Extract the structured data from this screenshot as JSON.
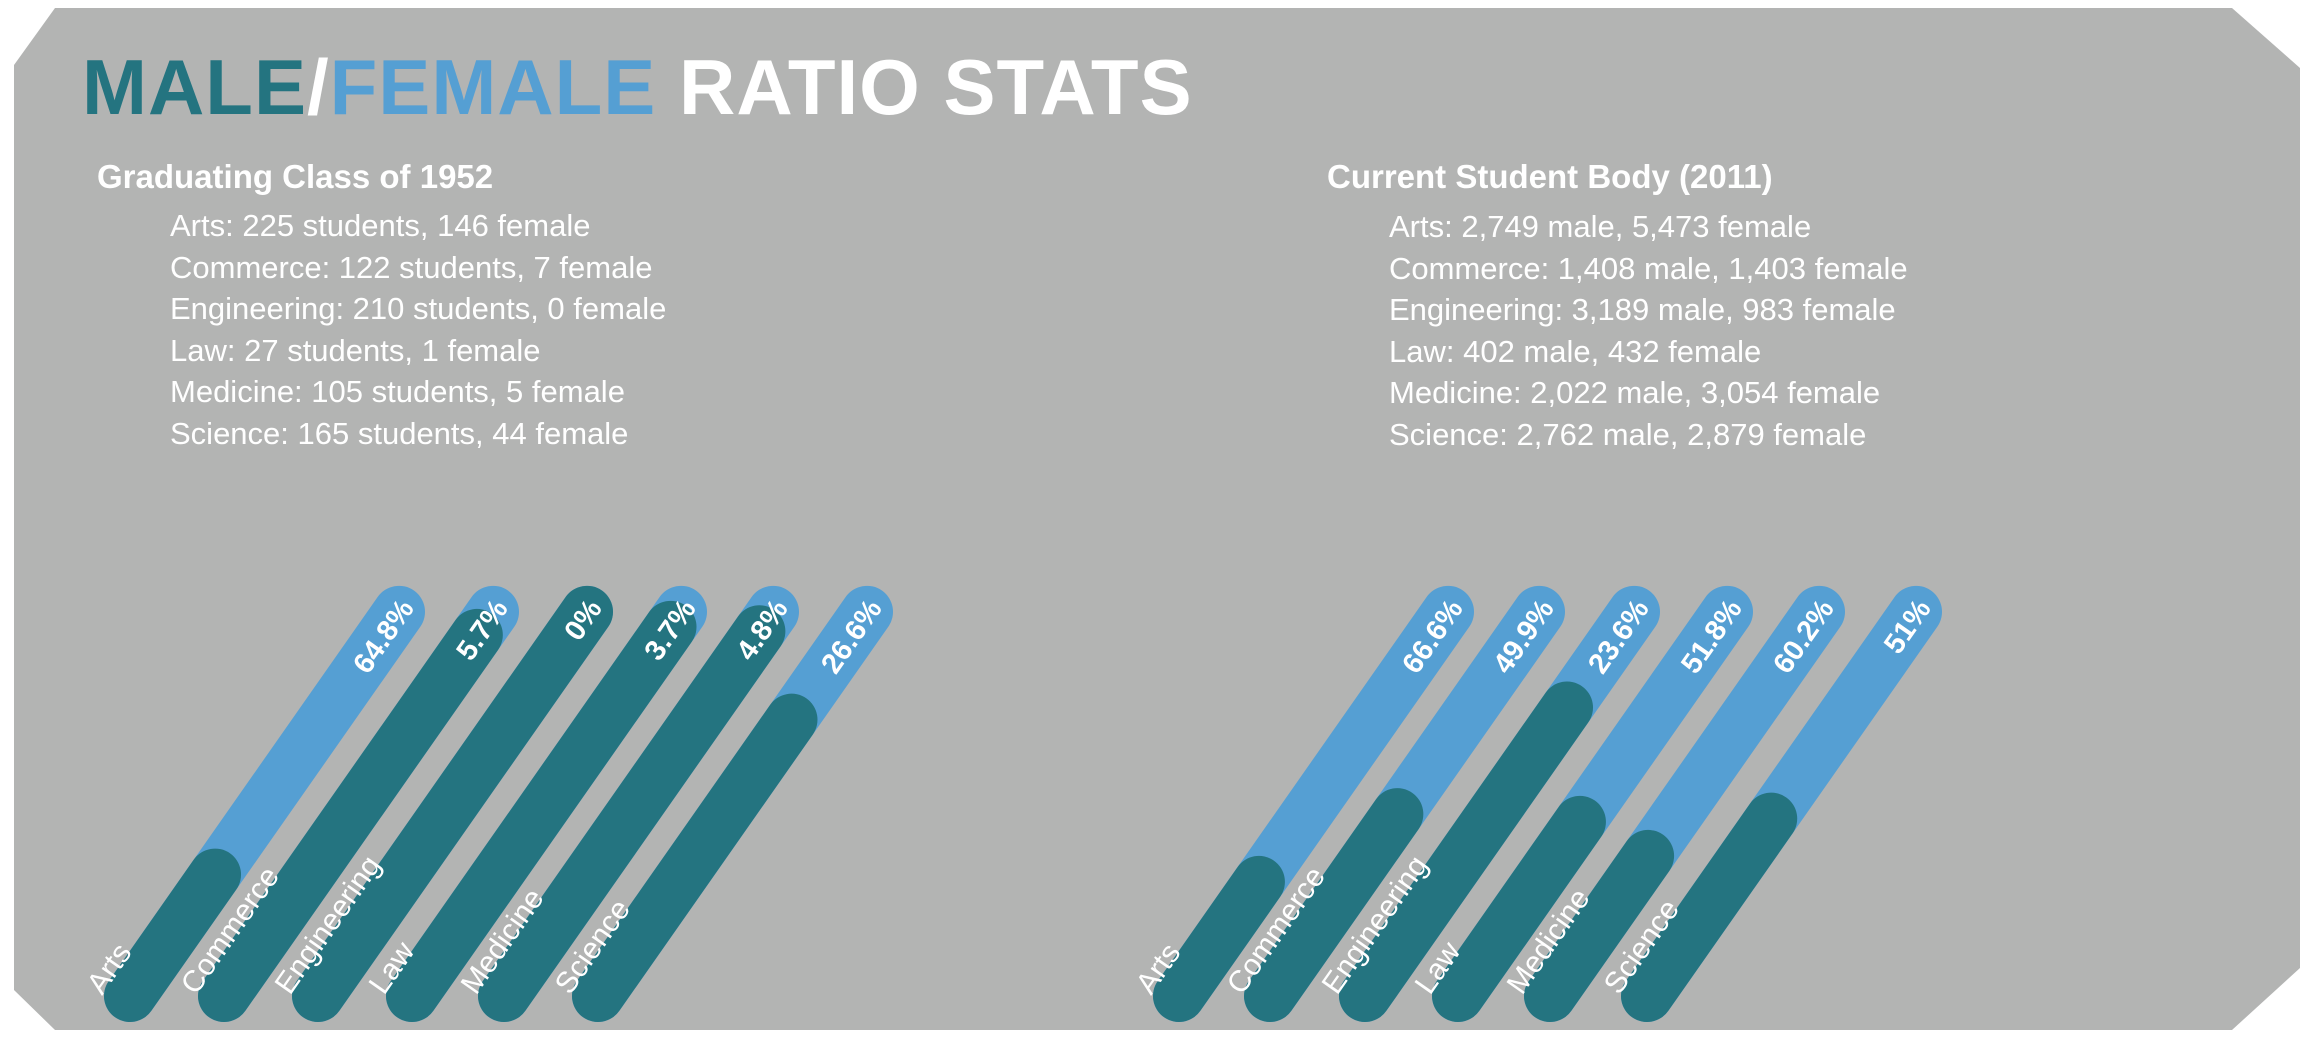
{
  "title": {
    "male": "MALE",
    "slash": "/",
    "female": "FEMALE",
    "rest": "RATIO STATS"
  },
  "colors": {
    "background": "#b3b4b3",
    "male": "#247480",
    "female": "#559fd3",
    "text": "#ffffff"
  },
  "panels": [
    {
      "heading": "Graduating Class of 1952",
      "lines": [
        "Arts: 225 students, 146 female",
        "Commerce: 122 students, 7 female",
        "Engineering: 210 students, 0 female",
        "Law: 27 students, 1 female",
        "Medicine: 105 students, 5 female",
        "Science: 165 students, 44 female"
      ]
    },
    {
      "heading": "Current Student Body (2011)",
      "lines": [
        "Arts: 2,749 male, 5,473 female",
        "Commerce: 1,408 male, 1,403 female",
        "Engineering: 3,189 male, 983 female",
        "Law: 402 male, 432 female",
        "Medicine: 2,022 male, 3,054 female",
        "Science: 2,762 male, 2,879 female"
      ]
    }
  ],
  "chart_data": [
    {
      "type": "bar",
      "categories": [
        "Arts",
        "Commerce",
        "Engineering",
        "Law",
        "Medicine",
        "Science"
      ],
      "values": [
        64.8,
        5.7,
        0,
        3.7,
        4.8,
        26.6
      ],
      "value_labels": [
        "64.8%",
        "5.7%",
        "0%",
        "3.7%",
        "4.8%",
        "26.6%"
      ],
      "unit": "%",
      "stacked": true,
      "orientation": "diagonal"
    },
    {
      "type": "bar",
      "categories": [
        "Arts",
        "Commerce",
        "Engineering",
        "Law",
        "Medicine",
        "Science"
      ],
      "values": [
        66.6,
        49.9,
        23.6,
        51.8,
        60.2,
        51
      ],
      "value_labels": [
        "66.6%",
        "49.9%",
        "23.6%",
        "51.8%",
        "60.2%",
        "51%"
      ],
      "unit": "%",
      "stacked": true,
      "orientation": "diagonal"
    }
  ]
}
